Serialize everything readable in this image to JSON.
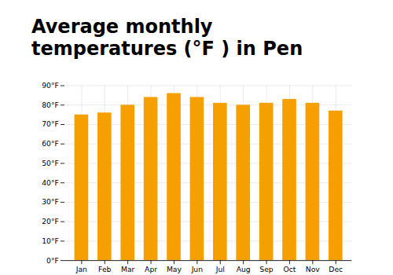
{
  "chart_data": {
    "type": "bar",
    "title": "Average monthly temperatures (°F ) in Pen",
    "categories": [
      "Jan",
      "Feb",
      "Mar",
      "Apr",
      "May",
      "Jun",
      "Jul",
      "Aug",
      "Sep",
      "Oct",
      "Nov",
      "Dec"
    ],
    "values": [
      75,
      76,
      80,
      84,
      86,
      84,
      81,
      80,
      81,
      83,
      81,
      77
    ],
    "color": "#F5A000",
    "ylim": [
      0,
      90
    ],
    "yticks": [
      {
        "value": 0,
        "label": "0°F"
      },
      {
        "value": 10,
        "label": "10°F"
      },
      {
        "value": 20,
        "label": "20°F"
      },
      {
        "value": 30,
        "label": "30°F"
      },
      {
        "value": 40,
        "label": "40°F"
      },
      {
        "value": 50,
        "label": "50°F"
      },
      {
        "value": 60,
        "label": "60°F"
      },
      {
        "value": 70,
        "label": "70°F"
      },
      {
        "value": 80,
        "label": "80°F"
      },
      {
        "value": 90,
        "label": "90°F"
      }
    ],
    "grid": true
  }
}
